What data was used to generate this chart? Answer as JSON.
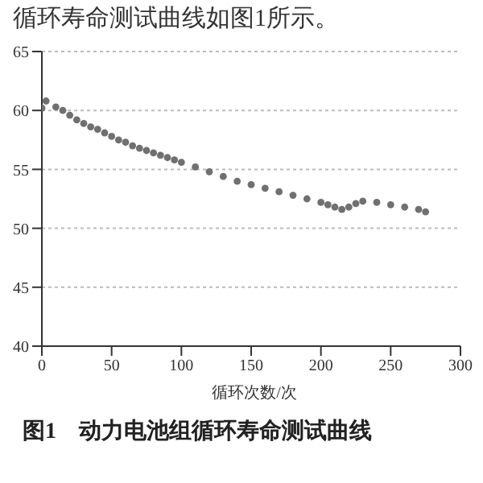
{
  "chart_data": {
    "type": "scatter",
    "title": "图1　动力电池组循环寿命测试曲线",
    "xlabel": "循环次数/次",
    "annotations": [
      "循环寿命测试曲线如图1所示。"
    ],
    "x": [
      0,
      3,
      10,
      15,
      20,
      25,
      30,
      35,
      40,
      45,
      50,
      55,
      60,
      65,
      70,
      75,
      80,
      85,
      90,
      95,
      100,
      110,
      120,
      130,
      140,
      150,
      160,
      170,
      180,
      190,
      200,
      205,
      210,
      215,
      220,
      225,
      230,
      240,
      250,
      260,
      270,
      275
    ],
    "series": [
      {
        "color": "#707070",
        "values": [
          60.2,
          60.8,
          60.3,
          60.0,
          59.6,
          59.2,
          58.9,
          58.6,
          58.4,
          58.1,
          57.8,
          57.5,
          57.3,
          57.0,
          56.8,
          56.6,
          56.4,
          56.2,
          56.0,
          55.8,
          55.6,
          55.2,
          54.8,
          54.4,
          54.0,
          53.7,
          53.4,
          53.1,
          52.8,
          52.5,
          52.2,
          52.0,
          51.8,
          51.6,
          51.8,
          52.1,
          52.3,
          52.2,
          52.0,
          51.8,
          51.6,
          51.4
        ]
      }
    ],
    "xlim": [
      0,
      300
    ],
    "xticks": [
      0,
      50,
      100,
      150,
      200,
      250,
      300
    ],
    "ylim": [
      40,
      65
    ],
    "yticks": [
      40,
      45,
      50,
      55,
      60,
      65
    ],
    "grid": "y",
    "marker": "circle",
    "legend": false
  }
}
